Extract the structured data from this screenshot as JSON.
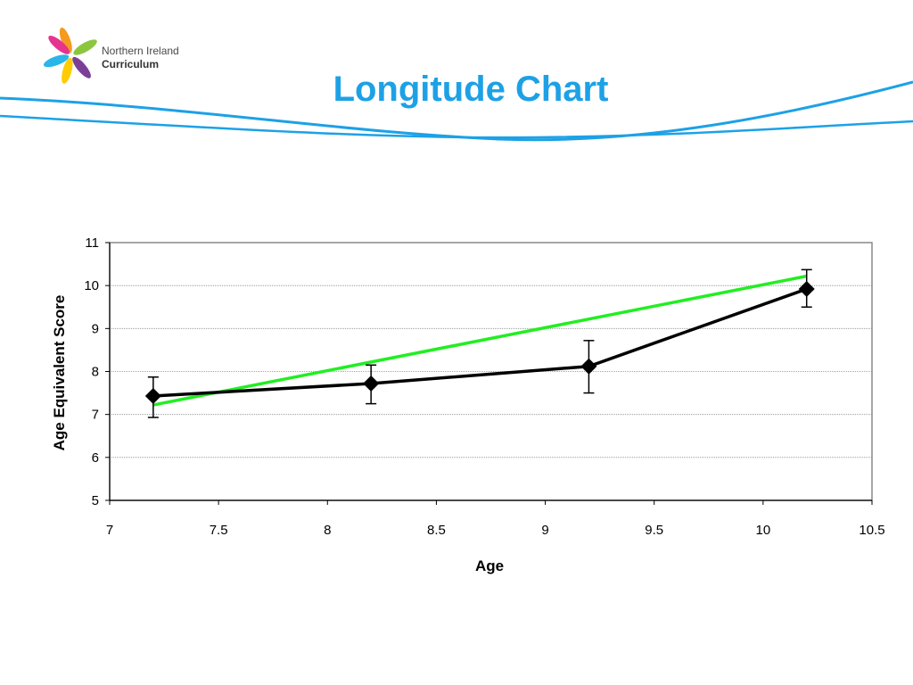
{
  "header": {
    "logo_line1": "Northern Ireland",
    "logo_line2": "Curriculum",
    "title": "Longitude Chart"
  },
  "colors": {
    "title": "#1da1e6",
    "swoosh": "#1da1e6",
    "series_main": "#000000",
    "trend": "#22ee22",
    "grid": "#888888"
  },
  "chart_data": {
    "type": "scatter",
    "xlabel": "Age",
    "ylabel": "Age Equivalent Score",
    "xlim": [
      7,
      10.5
    ],
    "ylim": [
      5,
      11
    ],
    "x_ticks": [
      "7",
      "7.5",
      "8",
      "8.5",
      "9",
      "9.5",
      "10",
      "10.5"
    ],
    "y_ticks": [
      "5",
      "6",
      "7",
      "8",
      "9",
      "10",
      "11"
    ],
    "grid": "horizontal",
    "legend": "none",
    "series": [
      {
        "x": [
          7.2,
          8.2,
          9.2,
          10.2
        ],
        "y": [
          7.43,
          7.72,
          8.12,
          9.92
        ],
        "error_upper": [
          7.87,
          8.15,
          8.72,
          10.37
        ],
        "error_lower": [
          6.93,
          7.25,
          7.5,
          9.5
        ],
        "marker": "diamond",
        "line": true
      },
      {
        "x": [
          7.2,
          10.2
        ],
        "y": [
          7.22,
          10.22
        ],
        "line": true
      }
    ]
  }
}
